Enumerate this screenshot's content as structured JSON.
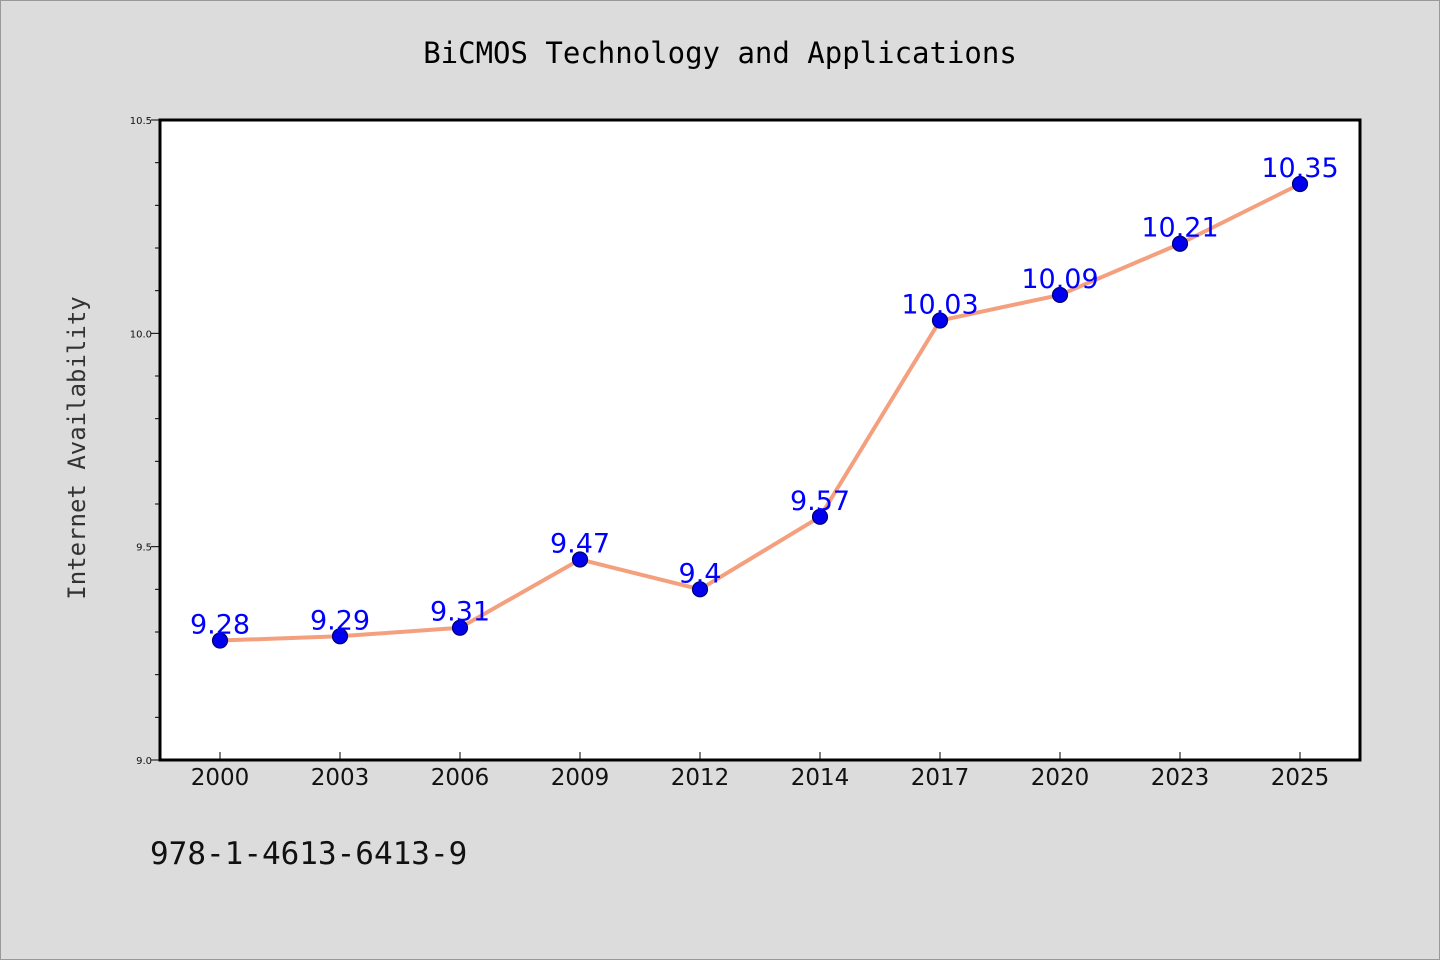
{
  "chart_data": {
    "type": "line",
    "title": "BiCMOS Technology and Applications",
    "xlabel": "",
    "ylabel": "Internet Availability",
    "categories": [
      "2000",
      "2003",
      "2006",
      "2009",
      "2012",
      "2014",
      "2017",
      "2020",
      "2023",
      "2025"
    ],
    "series": [
      {
        "values": [
          9.28,
          9.29,
          9.31,
          9.47,
          9.4,
          9.57,
          10.03,
          10.09,
          10.21,
          10.35
        ],
        "data_labels": [
          "9.28",
          "9.29",
          "9.31",
          "9.47",
          "9.4",
          "9.57",
          "10.03",
          "10.09",
          "10.21",
          "10.35"
        ],
        "line_color": "#f4a07e",
        "marker_color": "#0000ee"
      }
    ],
    "ylim": [
      9.0,
      10.5
    ],
    "yticks": [
      9.0,
      9.5,
      10.0,
      10.5
    ],
    "ytick_labels": [
      "9.0",
      "9.5",
      "10.0",
      "10.5"
    ],
    "yminor_step": 0.1,
    "grid": false,
    "legend": "none"
  },
  "footer": {
    "isbn": "978-1-4613-6413-9"
  },
  "colors": {
    "background": "#dcdcdc",
    "plot_area": "#ffffff",
    "data_label": "#0000ff"
  }
}
